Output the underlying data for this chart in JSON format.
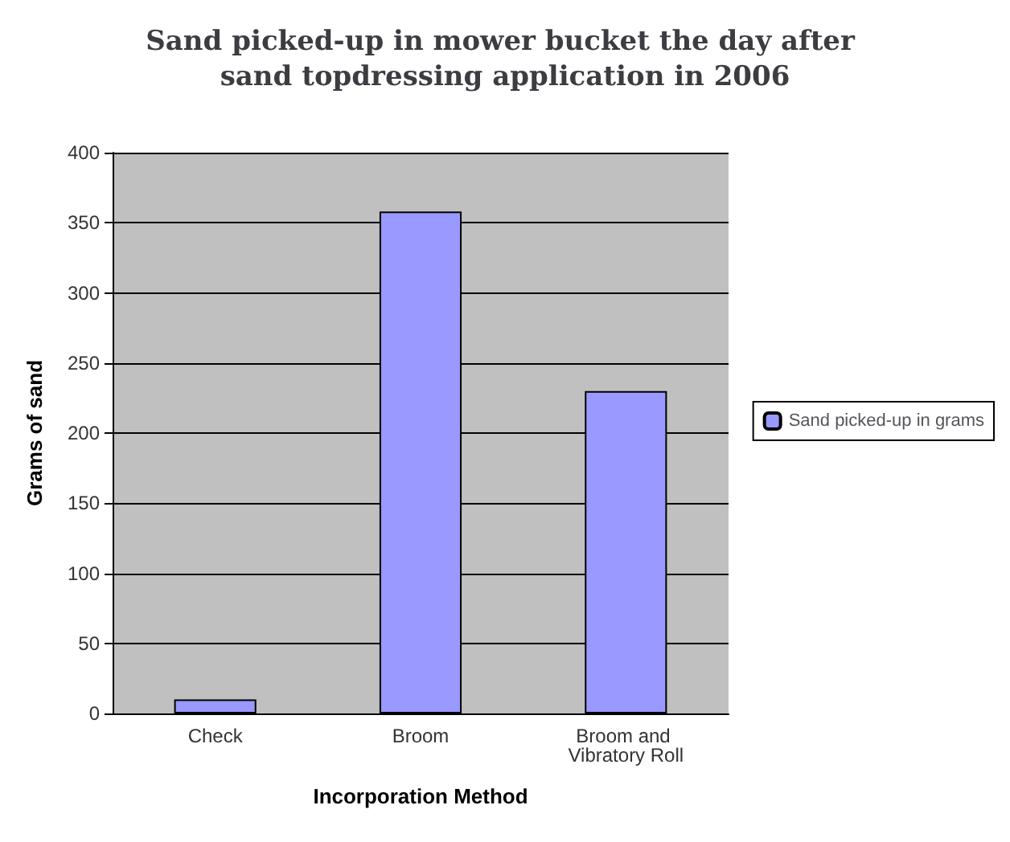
{
  "chart_data": {
    "type": "bar",
    "title": "Sand picked-up in mower bucket the day after sand topdressing application in 2006",
    "xlabel": "Incorporation Method",
    "ylabel": "Grams of sand",
    "categories": [
      "Check",
      "Broom",
      "Broom and Vibratory Roll"
    ],
    "series": [
      {
        "name": "Sand picked-up in grams",
        "color": "#9999ff",
        "values": [
          10,
          358,
          230
        ]
      }
    ],
    "ylim": [
      0,
      400
    ],
    "yticks": [
      0,
      50,
      100,
      150,
      200,
      250,
      300,
      350,
      400
    ],
    "grid": "y",
    "legend": "right"
  }
}
